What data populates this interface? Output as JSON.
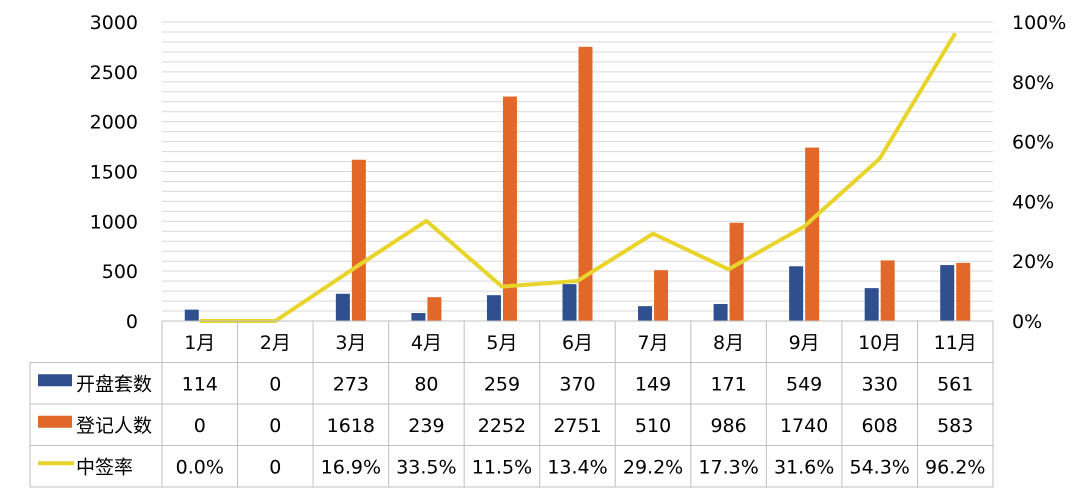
{
  "chart_data": {
    "type": "bar",
    "categories": [
      "1月",
      "2月",
      "3月",
      "4月",
      "5月",
      "6月",
      "7月",
      "8月",
      "9月",
      "10月",
      "11月"
    ],
    "series": [
      {
        "name": "开盘套数",
        "type": "bar",
        "axis": "left",
        "color": "#2F4F8F",
        "values": [
          114,
          0,
          273,
          80,
          259,
          370,
          149,
          171,
          549,
          330,
          561
        ],
        "labels": [
          "114",
          "0",
          "273",
          "80",
          "259",
          "370",
          "149",
          "171",
          "549",
          "330",
          "561"
        ]
      },
      {
        "name": "登记人数",
        "type": "bar",
        "axis": "left",
        "color": "#E2682A",
        "values": [
          0,
          0,
          1618,
          239,
          2252,
          2751,
          510,
          986,
          1740,
          608,
          583
        ],
        "labels": [
          "0",
          "0",
          "1618",
          "239",
          "2252",
          "2751",
          "510",
          "986",
          "1740",
          "608",
          "583"
        ]
      },
      {
        "name": "中签率",
        "type": "line",
        "axis": "right",
        "color": "#E8D42A",
        "values": [
          0.0,
          0,
          16.9,
          33.5,
          11.5,
          13.4,
          29.2,
          17.3,
          31.6,
          54.3,
          96.2
        ],
        "labels": [
          "0.0%",
          "0",
          "16.9%",
          "33.5%",
          "11.5%",
          "13.4%",
          "29.2%",
          "17.3%",
          "31.6%",
          "54.3%",
          "96.2%"
        ]
      }
    ],
    "ylim": [
      0,
      3000
    ],
    "y_ticks": [
      "0",
      "500",
      "1000",
      "1500",
      "2000",
      "2500",
      "3000"
    ],
    "y2lim": [
      0,
      100
    ],
    "y2_ticks": [
      "0%",
      "20%",
      "40%",
      "60%",
      "80%",
      "100%"
    ],
    "grid": true,
    "data_table": true
  }
}
